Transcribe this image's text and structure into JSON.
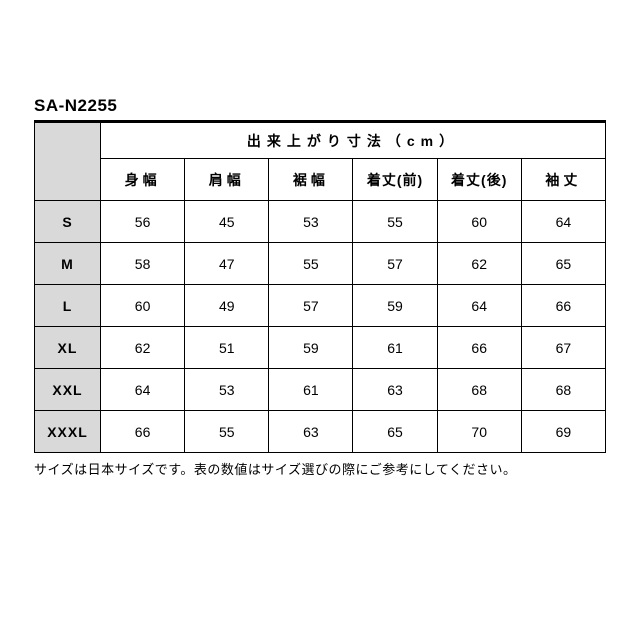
{
  "title": "SA-N2255",
  "header_group": "出来上がり寸法（cm）",
  "columns": [
    "身幅",
    "肩幅",
    "裾幅",
    "着丈(前)",
    "着丈(後)",
    "袖丈"
  ],
  "rows": [
    {
      "size": "S",
      "vals": [
        56,
        45,
        53,
        55,
        60,
        64
      ]
    },
    {
      "size": "M",
      "vals": [
        58,
        47,
        55,
        57,
        62,
        65
      ]
    },
    {
      "size": "L",
      "vals": [
        60,
        49,
        57,
        59,
        64,
        66
      ]
    },
    {
      "size": "XL",
      "vals": [
        62,
        51,
        59,
        61,
        66,
        67
      ]
    },
    {
      "size": "XXL",
      "vals": [
        64,
        53,
        61,
        63,
        68,
        68
      ]
    },
    {
      "size": "XXXL",
      "vals": [
        66,
        55,
        63,
        65,
        70,
        69
      ]
    }
  ],
  "note": "サイズは日本サイズです。表の数値はサイズ選びの際にご参考にしてください。",
  "colors": {
    "header_bg": "#d9d9d9",
    "border": "#000000",
    "bg": "#ffffff",
    "text": "#000000"
  }
}
